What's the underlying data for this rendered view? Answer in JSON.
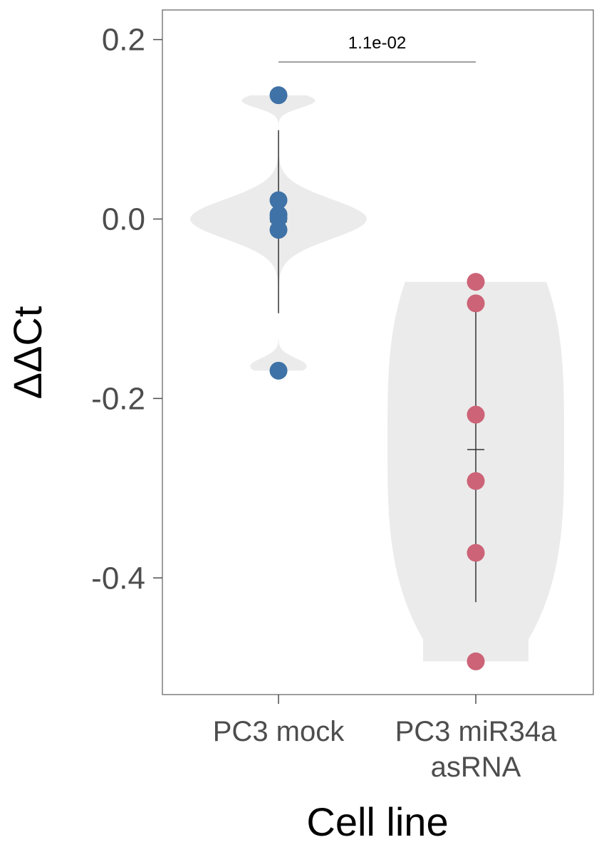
{
  "chart_data": {
    "type": "violin",
    "title": "",
    "xlabel": "Cell line",
    "ylabel": "ΔΔCt",
    "ylim": [
      -0.53,
      0.233
    ],
    "yticks": [
      0.2,
      0.0,
      -0.2,
      -0.4
    ],
    "ytick_labels": [
      "0.2",
      "0.0",
      "-0.2",
      "-0.4"
    ],
    "grid": false,
    "categories": [
      {
        "label_lines": [
          "PC3 mock"
        ]
      },
      {
        "label_lines": [
          "PC3 miR34a",
          "asRNA"
        ]
      }
    ],
    "groups": [
      {
        "category_index": 0,
        "color": "#3f72a6",
        "points": [
          0.138,
          0.021,
          0.005,
          0.001,
          -0.012,
          -0.169
        ],
        "mean": -0.003,
        "error_low": -0.105,
        "error_high": 0.099,
        "violin_extent": [
          -0.169,
          0.138
        ]
      },
      {
        "category_index": 1,
        "color": "#cc6377",
        "points": [
          -0.07,
          -0.094,
          -0.218,
          -0.292,
          -0.372,
          -0.493
        ],
        "mean": -0.257,
        "error_low": -0.427,
        "error_high": -0.087,
        "violin_extent": [
          -0.493,
          -0.07
        ]
      }
    ],
    "annotation": {
      "text": "1.1e-02",
      "from_category": 0,
      "to_category": 1,
      "y": 0.175
    },
    "violin_color": "#ebebeb",
    "frame_color": "#7f7f7f"
  }
}
